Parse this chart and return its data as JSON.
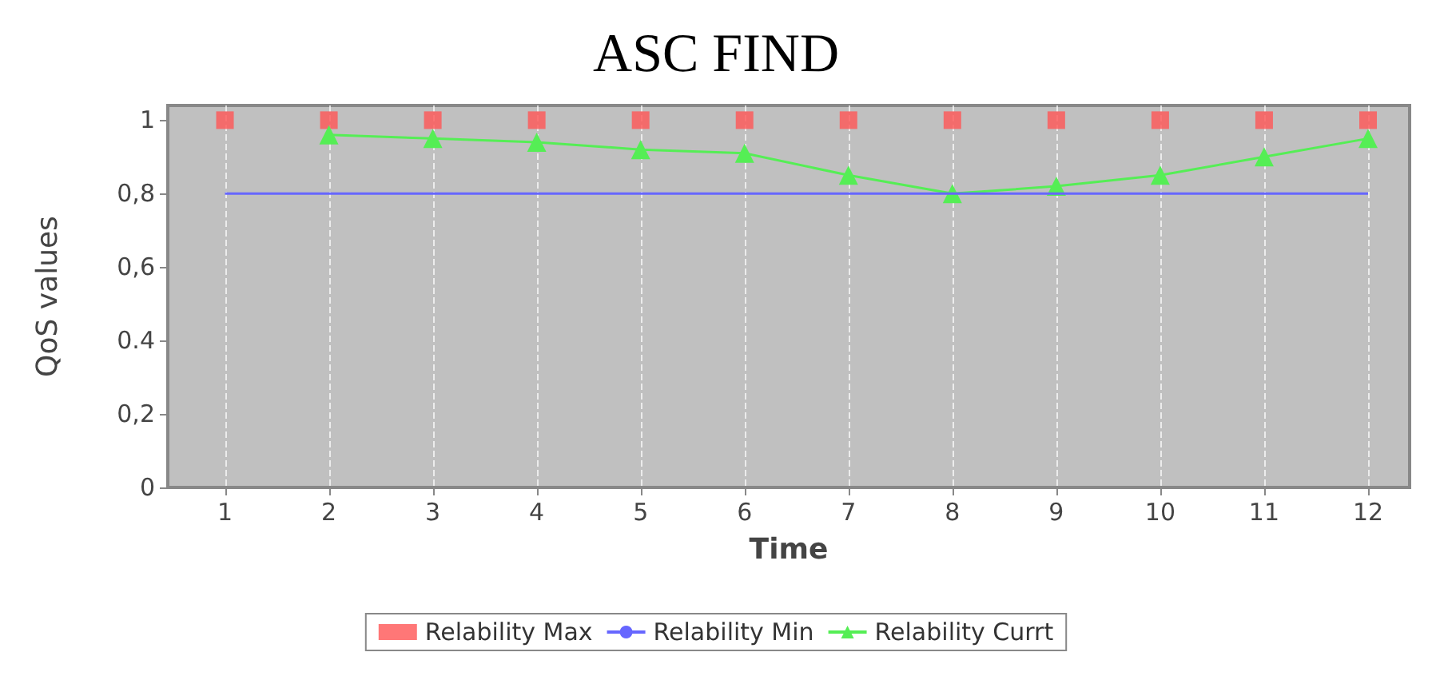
{
  "chart_data": {
    "type": "line",
    "title": "ASC FIND",
    "xlabel": "Time",
    "ylabel": "QoS values",
    "x": [
      1,
      2,
      3,
      4,
      5,
      6,
      7,
      8,
      9,
      10,
      11,
      12
    ],
    "series": [
      {
        "name": "Relability Max",
        "color": "#ff5555",
        "type": "scatter",
        "marker": "square",
        "values": [
          1,
          1,
          1,
          1,
          1,
          1,
          1,
          1,
          1,
          1,
          1,
          1
        ]
      },
      {
        "name": "Relability Min",
        "color": "#6666ff",
        "marker": "none",
        "values": [
          0.8,
          0.8,
          0.8,
          0.8,
          0.8,
          0.8,
          0.8,
          0.8,
          0.8,
          0.8,
          0.8,
          0.8
        ]
      },
      {
        "name": "Relability Currt",
        "color": "#55ee55",
        "marker": "triangle",
        "values": [
          null,
          0.96,
          0.95,
          0.94,
          0.92,
          0.91,
          0.85,
          0.8,
          0.82,
          0.85,
          0.9,
          0.95
        ]
      }
    ],
    "xlim": [
      0.45,
      12.4
    ],
    "xticks": [
      1,
      2,
      3,
      4,
      5,
      6,
      7,
      8,
      9,
      10,
      11,
      12
    ],
    "ylim": [
      0,
      1.04
    ],
    "yticks": [
      0,
      {
        "value": 0.2,
        "label": "0,2"
      },
      0.4,
      {
        "value": 0.6,
        "label": "0,6"
      },
      {
        "value": 0.8,
        "label": "0,8"
      },
      1
    ],
    "grid": "x",
    "legend": "bottom"
  }
}
